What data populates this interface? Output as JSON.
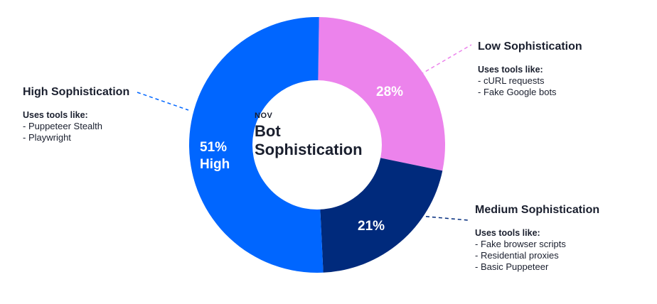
{
  "chart_data": {
    "type": "pie",
    "title": "Bot Sophistication",
    "subtitle": "NOV",
    "slices": [
      {
        "name": "Low Sophistication",
        "value": 28,
        "label": "28%",
        "color": "#ec83ec",
        "tools_label": "Uses tools like:",
        "tools": [
          "- cURL requests",
          "- Fake Google bots"
        ]
      },
      {
        "name": "Medium Sophistication",
        "value": 21,
        "label": "21%",
        "color": "#002a7c",
        "tools_label": "Uses tools like:",
        "tools": [
          "- Fake browser scripts",
          "- Residential proxies",
          "- Basic Puppeteer"
        ]
      },
      {
        "name": "High Sophistication",
        "value": 51,
        "label": "51%",
        "sublabel": "High",
        "color": "#0066ff",
        "tools_label": "Uses tools like:",
        "tools": [
          "- Puppeteer Stealth",
          "- Playwright"
        ]
      }
    ]
  }
}
